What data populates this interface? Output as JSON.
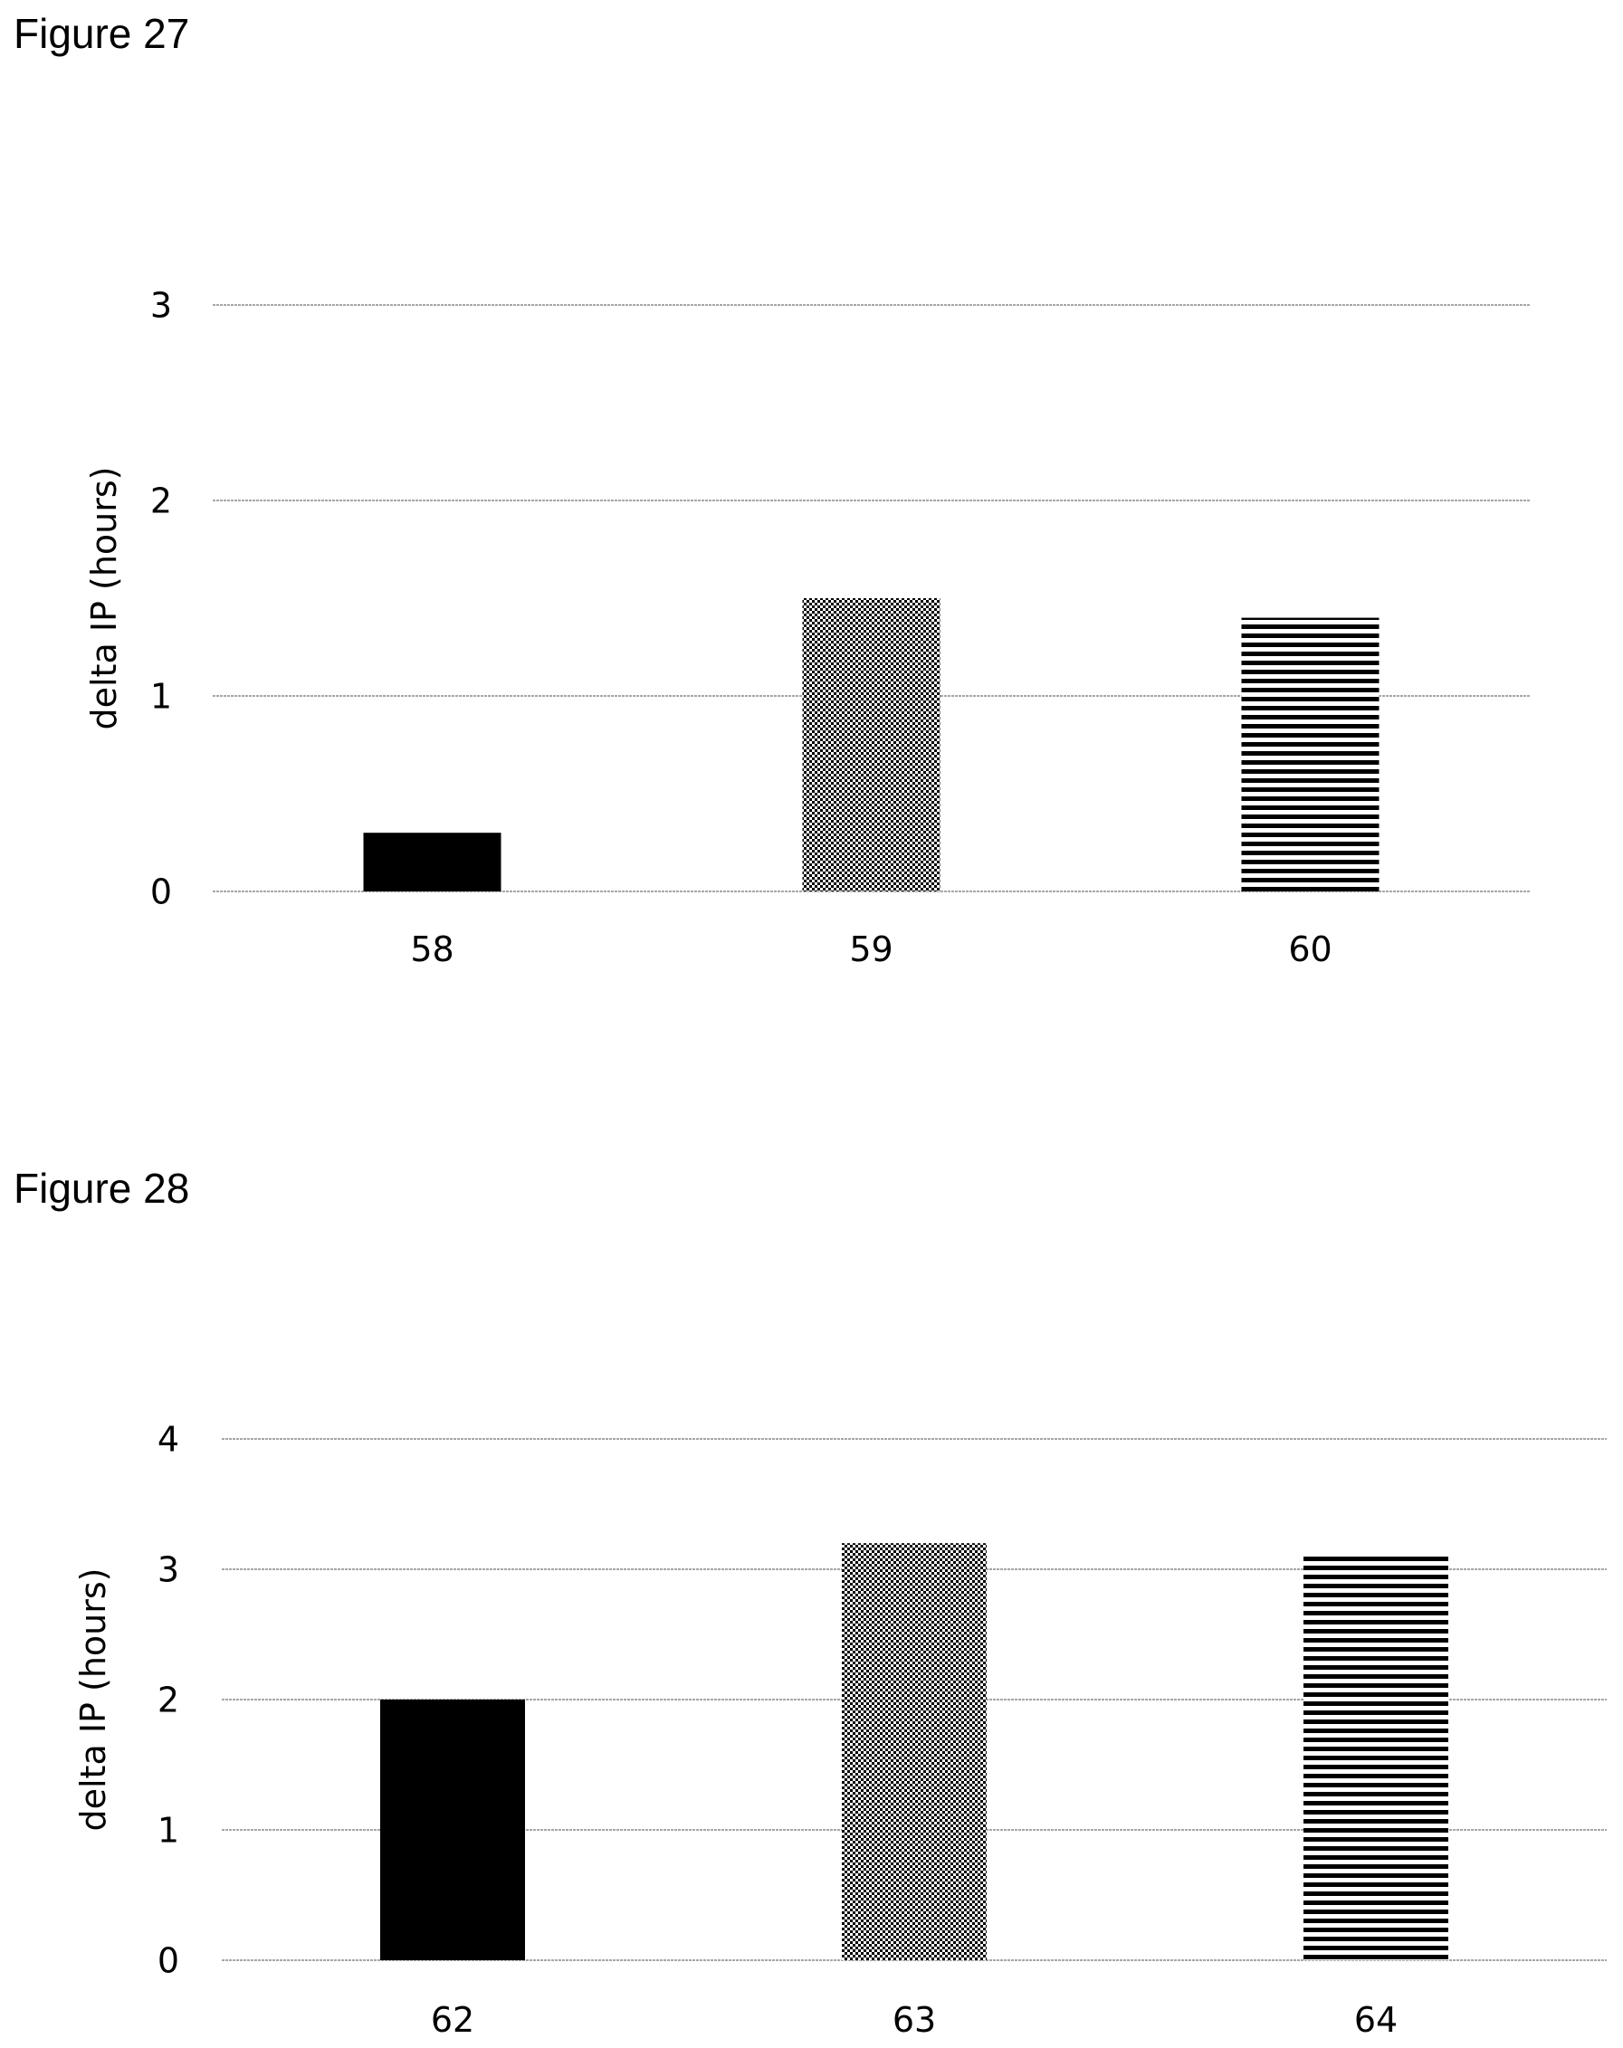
{
  "figures": [
    {
      "label": "Figure 27",
      "chart_data": {
        "type": "bar",
        "categories": [
          "58",
          "59",
          "60"
        ],
        "values": [
          0.3,
          1.5,
          1.4
        ],
        "patterns": [
          "solid",
          "dots",
          "stripes"
        ],
        "xlabel": "",
        "ylabel": "delta IP (hours)",
        "ylim": [
          0,
          3
        ],
        "yticks": [
          "0",
          "1",
          "2",
          "3"
        ],
        "grid": true,
        "legend": "none"
      }
    },
    {
      "label": "Figure 28",
      "chart_data": {
        "type": "bar",
        "categories": [
          "62",
          "63",
          "64"
        ],
        "values": [
          2.0,
          3.2,
          3.1
        ],
        "patterns": [
          "solid",
          "dots",
          "stripes"
        ],
        "xlabel": "",
        "ylabel": "delta IP (hours)",
        "ylim": [
          0,
          4
        ],
        "yticks": [
          "0",
          "1",
          "2",
          "3",
          "4"
        ],
        "grid": true,
        "legend": "none"
      }
    }
  ],
  "colors": {
    "bar": "#000000",
    "grid": "#a6a6a6",
    "background": "#ffffff"
  }
}
